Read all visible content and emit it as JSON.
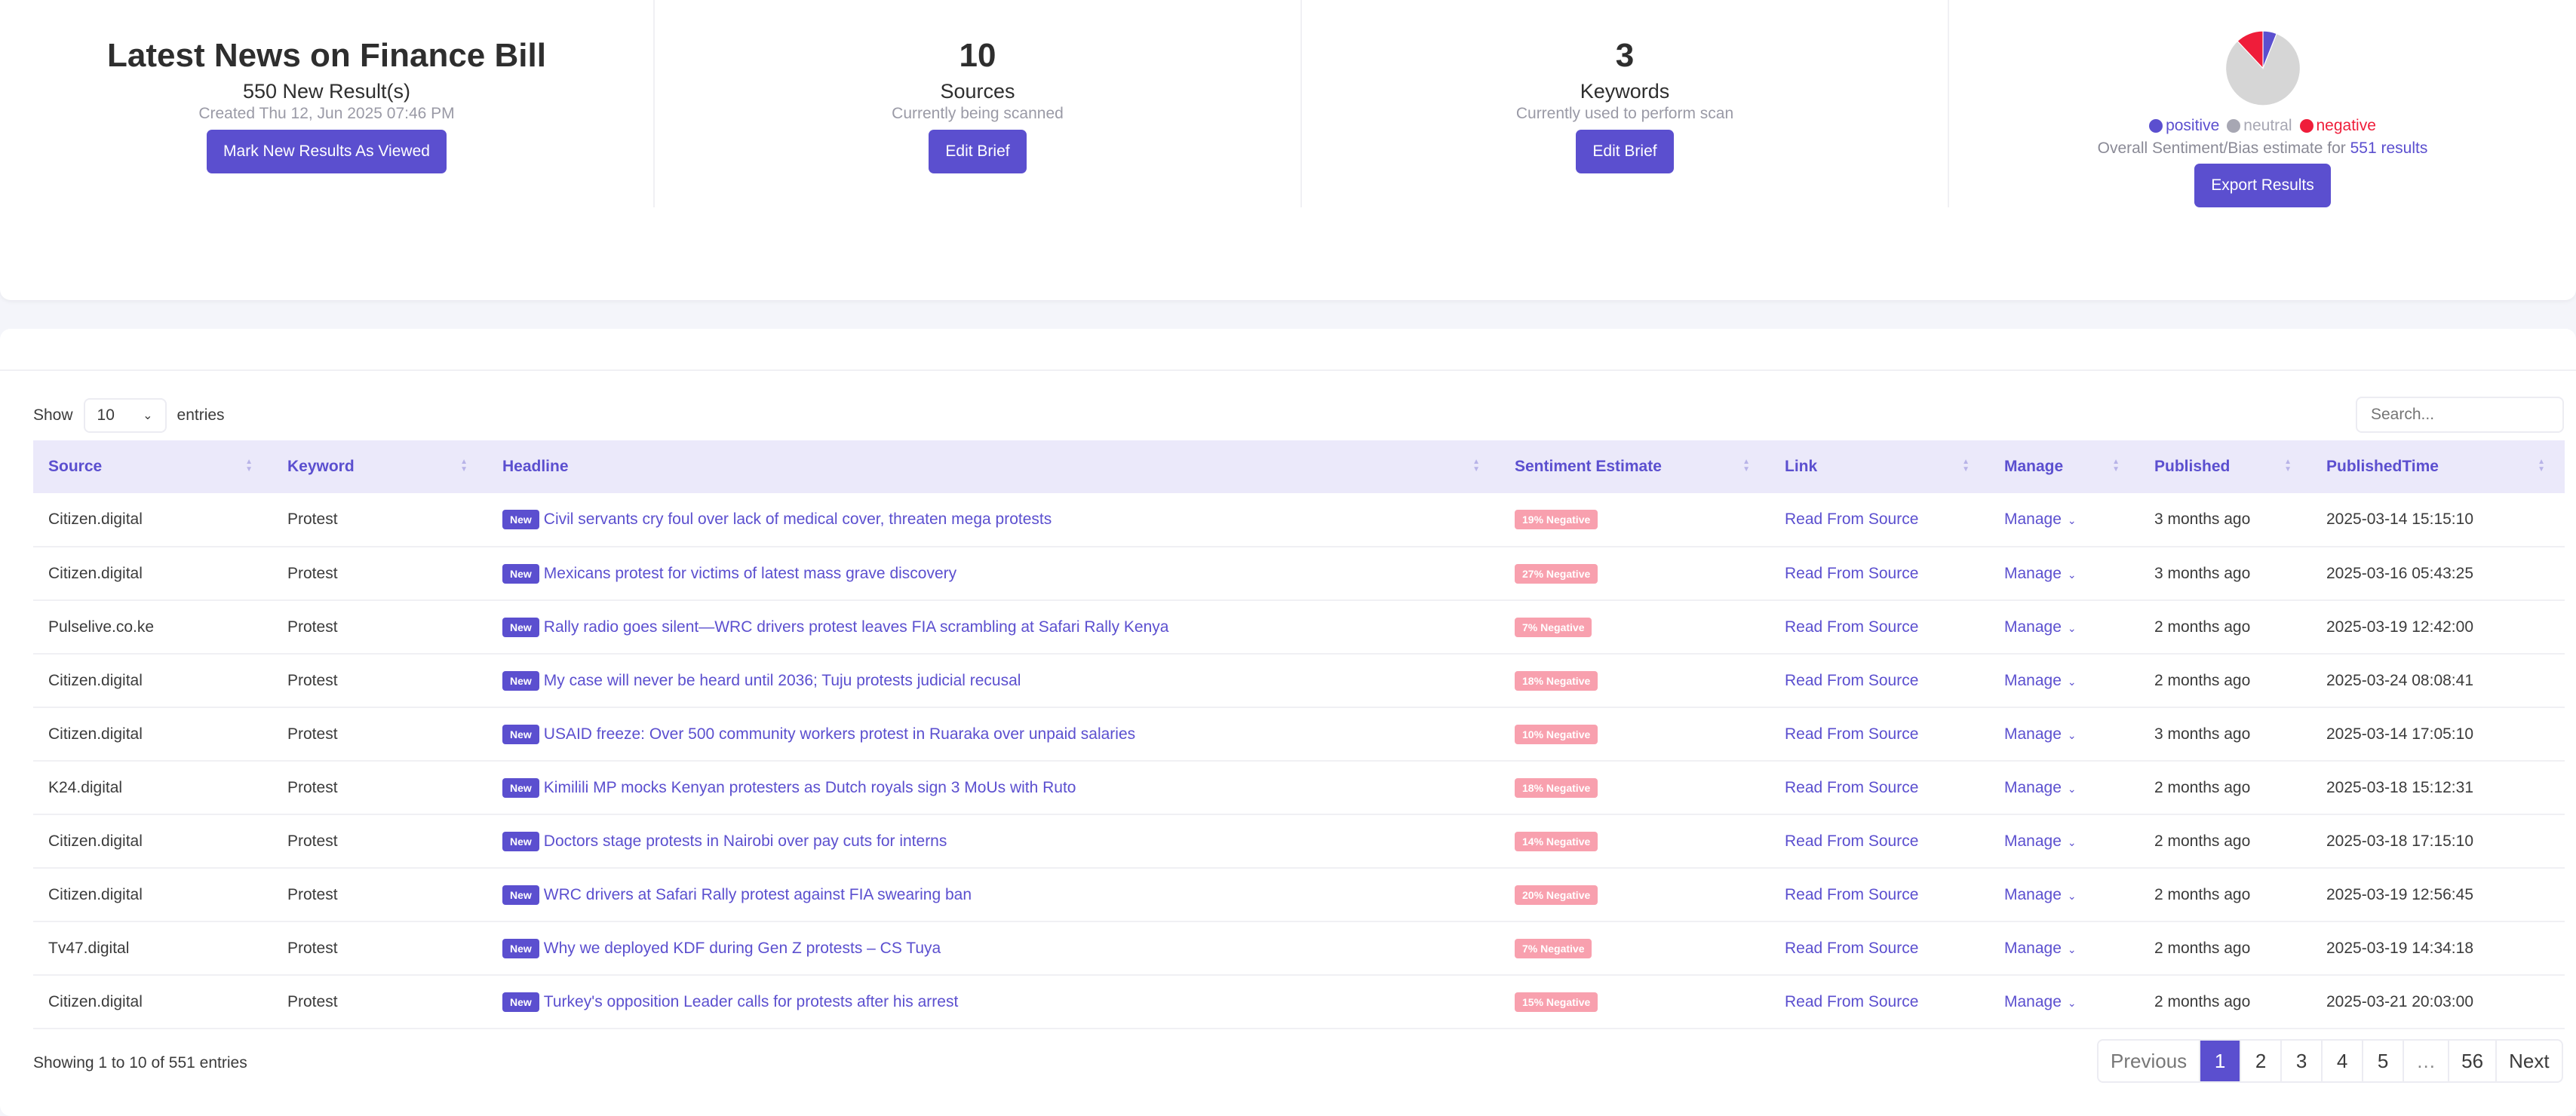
{
  "summary": {
    "brief": {
      "title": "Latest News on Finance Bill",
      "new_results": "550 New Result(s)",
      "created": "Created Thu 12, Jun 2025 07:46 PM",
      "button": "Mark New Results As Viewed"
    },
    "sources": {
      "count": "10",
      "label": "Sources",
      "note": "Currently being scanned",
      "button": "Edit Brief"
    },
    "keywords": {
      "count": "3",
      "label": "Keywords",
      "note": "Currently used to perform scan",
      "button": "Edit Brief"
    },
    "sentiment": {
      "legend": {
        "positive": "positive",
        "neutral": "neutral",
        "negative": "negative"
      },
      "overall_text": "Overall Sentiment/Bias estimate for",
      "overall_count": "551 results",
      "export_button": "Export Results",
      "colors": {
        "positive": "#5b4fcf",
        "neutral": "#d6d6d6",
        "negative": "#ef1d3a"
      }
    }
  },
  "chart_data": {
    "type": "pie",
    "slices": [
      {
        "label": "positive",
        "value": 0.06,
        "color": "#5b4fcf"
      },
      {
        "label": "neutral",
        "value": 0.82,
        "color": "#d6d6d6"
      },
      {
        "label": "negative",
        "value": 0.12,
        "color": "#ef1d3a"
      }
    ]
  },
  "table": {
    "show_label": "Show",
    "entries_value": "10",
    "entries_label": "entries",
    "search_placeholder": "Search...",
    "columns": [
      "Source",
      "Keyword",
      "Headline",
      "Sentiment Estimate",
      "Link",
      "Manage",
      "Published",
      "PublishedTime"
    ],
    "new_badge": "New",
    "link_text": "Read From Source",
    "manage_text": "Manage",
    "rows": [
      {
        "source": "Citizen.digital",
        "keyword": "Protest",
        "headline": "Civil servants cry foul over lack of medical cover, threaten mega protests",
        "sentiment": "19% Negative",
        "published": "3 months ago",
        "time": "2025-03-14 15:15:10"
      },
      {
        "source": "Citizen.digital",
        "keyword": "Protest",
        "headline": "Mexicans protest for victims of latest mass grave discovery",
        "sentiment": "27% Negative",
        "published": "3 months ago",
        "time": "2025-03-16 05:43:25"
      },
      {
        "source": "Pulselive.co.ke",
        "keyword": "Protest",
        "headline": "Rally radio goes silent—WRC drivers protest leaves FIA scrambling at Safari Rally Kenya",
        "sentiment": "7% Negative",
        "published": "2 months ago",
        "time": "2025-03-19 12:42:00"
      },
      {
        "source": "Citizen.digital",
        "keyword": "Protest",
        "headline": "My case will never be heard until 2036; Tuju protests judicial recusal",
        "sentiment": "18% Negative",
        "published": "2 months ago",
        "time": "2025-03-24 08:08:41"
      },
      {
        "source": "Citizen.digital",
        "keyword": "Protest",
        "headline": "USAID freeze: Over 500 community workers protest in Ruaraka over unpaid salaries",
        "sentiment": "10% Negative",
        "published": "3 months ago",
        "time": "2025-03-14 17:05:10"
      },
      {
        "source": "K24.digital",
        "keyword": "Protest",
        "headline": "Kimilili MP mocks Kenyan protesters as Dutch royals sign 3 MoUs with Ruto",
        "sentiment": "18% Negative",
        "published": "2 months ago",
        "time": "2025-03-18 15:12:31"
      },
      {
        "source": "Citizen.digital",
        "keyword": "Protest",
        "headline": "Doctors stage protests in Nairobi over pay cuts for interns",
        "sentiment": "14% Negative",
        "published": "2 months ago",
        "time": "2025-03-18 17:15:10"
      },
      {
        "source": "Citizen.digital",
        "keyword": "Protest",
        "headline": "WRC drivers at Safari Rally protest against FIA swearing ban",
        "sentiment": "20% Negative",
        "published": "2 months ago",
        "time": "2025-03-19 12:56:45"
      },
      {
        "source": "Tv47.digital",
        "keyword": "Protest",
        "headline": "Why we deployed KDF during Gen Z protests – CS Tuya",
        "sentiment": "7% Negative",
        "published": "2 months ago",
        "time": "2025-03-19 14:34:18"
      },
      {
        "source": "Citizen.digital",
        "keyword": "Protest",
        "headline": "Turkey's opposition Leader calls for protests after his arrest",
        "sentiment": "15% Negative",
        "published": "2 months ago",
        "time": "2025-03-21 20:03:00"
      }
    ],
    "info": "Showing 1 to 10 of 551 entries",
    "pagination": [
      "Previous",
      "1",
      "2",
      "3",
      "4",
      "5",
      "…",
      "56",
      "Next"
    ],
    "active_page": "1"
  }
}
